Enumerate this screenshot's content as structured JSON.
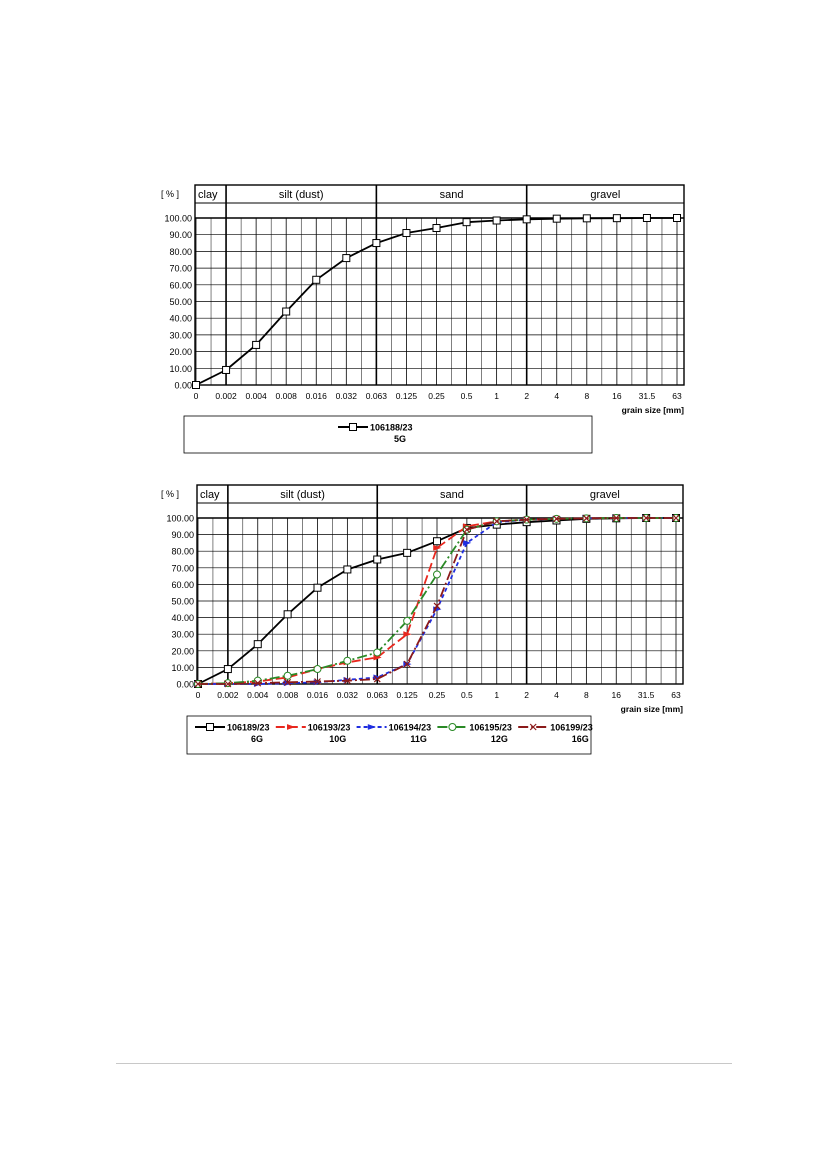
{
  "chart_data": [
    {
      "type": "line",
      "title": "",
      "ylabel": "[ % ]",
      "xlabel": "grain size [mm]",
      "ylim": [
        0,
        100
      ],
      "y_ticks": [
        "0.00",
        "10.00",
        "20.00",
        "30.00",
        "40.00",
        "50.00",
        "60.00",
        "70.00",
        "80.00",
        "90.00",
        "100.00"
      ],
      "x_ticks": [
        "0",
        "0.002",
        "0.004",
        "0.008",
        "0.016",
        "0.032",
        "0.063",
        "0.125",
        "0.25",
        "0.5",
        "1",
        "2",
        "4",
        "8",
        "16",
        "31.5",
        "63"
      ],
      "x_scale": "logarithmic grain size (sieve classes)",
      "zones": [
        "clay",
        "silt (dust)",
        "sand",
        "gravel"
      ],
      "legend_position": "bottom",
      "series": [
        {
          "name": "106188/23",
          "sub": "5G",
          "color": "#000000",
          "marker": "square",
          "line": "solid",
          "x": [
            "0",
            "0.002",
            "0.004",
            "0.008",
            "0.016",
            "0.032",
            "0.063",
            "0.125",
            "0.25",
            "0.5",
            "1",
            "2",
            "4",
            "8",
            "16",
            "31.5",
            "63"
          ],
          "values": [
            0,
            9,
            24,
            44,
            63,
            76,
            85,
            91,
            94,
            97.5,
            98.5,
            99.2,
            99.6,
            99.8,
            99.9,
            100,
            100
          ]
        }
      ]
    },
    {
      "type": "line",
      "title": "",
      "ylabel": "[ % ]",
      "xlabel": "grain size [mm]",
      "ylim": [
        0,
        100
      ],
      "y_ticks": [
        "0.00",
        "10.00",
        "20.00",
        "30.00",
        "40.00",
        "50.00",
        "60.00",
        "70.00",
        "80.00",
        "90.00",
        "100.00"
      ],
      "x_ticks": [
        "0",
        "0.002",
        "0.004",
        "0.008",
        "0.016",
        "0.032",
        "0.063",
        "0.125",
        "0.25",
        "0.5",
        "1",
        "2",
        "4",
        "8",
        "16",
        "31.5",
        "63"
      ],
      "x_scale": "logarithmic grain size (sieve classes)",
      "zones": [
        "clay",
        "silt (dust)",
        "sand",
        "gravel"
      ],
      "legend_position": "bottom",
      "series": [
        {
          "name": "106189/23",
          "sub": "6G",
          "color": "#000000",
          "marker": "square",
          "line": "solid",
          "x": [
            "0",
            "0.002",
            "0.004",
            "0.008",
            "0.016",
            "0.032",
            "0.063",
            "0.125",
            "0.25",
            "0.5",
            "1",
            "2",
            "4",
            "8",
            "16",
            "31.5",
            "63"
          ],
          "values": [
            0,
            9,
            24,
            42,
            58,
            69,
            75,
            79,
            86,
            94,
            96,
            97.5,
            98.5,
            99.5,
            99.8,
            100,
            100
          ]
        },
        {
          "name": "106193/23",
          "sub": "10G",
          "color": "#e8271e",
          "marker": "arrow",
          "line": "dashed",
          "x": [
            "0",
            "0.002",
            "0.004",
            "0.008",
            "0.016",
            "0.032",
            "0.063",
            "0.125",
            "0.25",
            "0.5",
            "1",
            "2",
            "4",
            "8",
            "16",
            "31.5",
            "63"
          ],
          "values": [
            0,
            0.5,
            1.5,
            4,
            9,
            13,
            16,
            30,
            82,
            95,
            98,
            99,
            99.5,
            99.8,
            100,
            100,
            100
          ]
        },
        {
          "name": "106194/23",
          "sub": "11G",
          "color": "#1f2ee0",
          "marker": "arrow",
          "line": "dotted",
          "x": [
            "0",
            "0.002",
            "0.004",
            "0.008",
            "0.016",
            "0.032",
            "0.063",
            "0.125",
            "0.25",
            "0.5",
            "1",
            "2",
            "4",
            "8",
            "16",
            "31.5",
            "63"
          ],
          "values": [
            0,
            0,
            0,
            0.5,
            1,
            2.5,
            4,
            12,
            45,
            85,
            97.5,
            99,
            99.5,
            99.8,
            100,
            100,
            100
          ]
        },
        {
          "name": "106195/23",
          "sub": "12G",
          "color": "#2a8a26",
          "marker": "circle",
          "line": "dashdot",
          "x": [
            "0",
            "0.002",
            "0.004",
            "0.008",
            "0.016",
            "0.032",
            "0.063",
            "0.125",
            "0.25",
            "0.5",
            "1",
            "2",
            "4",
            "8",
            "16",
            "31.5",
            "63"
          ],
          "values": [
            0,
            0.5,
            2,
            5,
            9,
            14,
            19,
            38,
            66,
            93,
            98,
            99,
            99.5,
            99.8,
            100,
            100,
            100
          ]
        },
        {
          "name": "106199/23",
          "sub": "16G",
          "color": "#8b1a1a",
          "marker": "x",
          "line": "dashdot",
          "x": [
            "0",
            "0.002",
            "0.004",
            "0.008",
            "0.016",
            "0.032",
            "0.063",
            "0.125",
            "0.25",
            "0.5",
            "1",
            "2",
            "4",
            "8",
            "16",
            "31.5",
            "63"
          ],
          "values": [
            0,
            0,
            0.5,
            1,
            1.5,
            2,
            3,
            12,
            47,
            93,
            98,
            99,
            99.5,
            99.8,
            100,
            100,
            100
          ]
        }
      ]
    }
  ]
}
